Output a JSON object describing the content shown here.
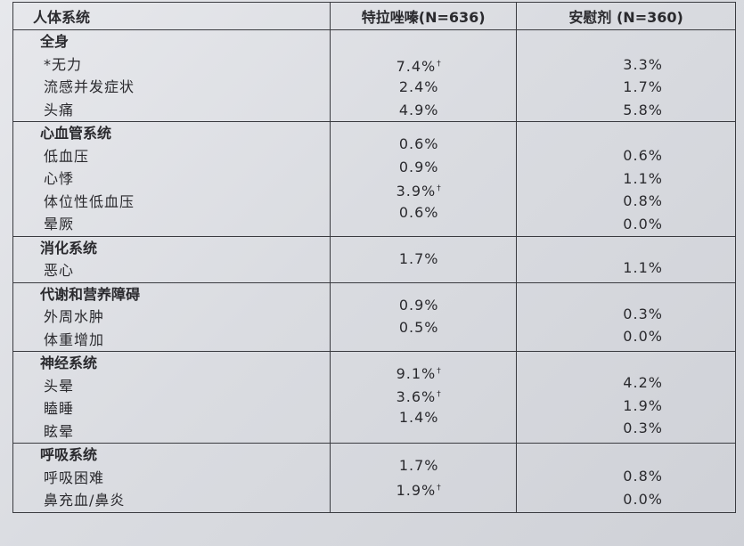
{
  "header": {
    "col_system": "人体系统",
    "col_drug": "特拉唑嗪(N=636)",
    "col_placebo": "安慰剂 (N=360)"
  },
  "sections": [
    {
      "title": "全身",
      "items": [
        "*无力",
        "流感并发症状",
        "头痛"
      ],
      "drug": [
        "7.4%",
        "2.4%",
        "4.9%"
      ],
      "drug_marks": [
        "†",
        "",
        ""
      ],
      "placebo": [
        "3.3%",
        "1.7%",
        "5.8%"
      ]
    },
    {
      "title": "心血管系统",
      "items": [
        "低血压",
        "心悸",
        "体位性低血压",
        "晕厥"
      ],
      "drug": [
        "0.6%",
        "0.9%",
        "3.9%",
        "0.6%"
      ],
      "drug_marks": [
        "",
        "",
        "†",
        ""
      ],
      "placebo": [
        "0.6%",
        "1.1%",
        "0.8%",
        "0.0%"
      ]
    },
    {
      "title": "消化系统",
      "items": [
        "恶心"
      ],
      "drug": [
        "1.7%"
      ],
      "drug_marks": [
        ""
      ],
      "placebo": [
        "1.1%"
      ]
    },
    {
      "title": "代谢和营养障碍",
      "items": [
        "外周水肿",
        "体重增加"
      ],
      "drug": [
        "0.9%",
        "0.5%"
      ],
      "drug_marks": [
        "",
        ""
      ],
      "placebo": [
        "0.3%",
        "0.0%"
      ]
    },
    {
      "title": "神经系统",
      "items": [
        "头晕",
        "瞌睡",
        "眩晕"
      ],
      "drug": [
        "9.1%",
        "3.6%",
        "1.4%"
      ],
      "drug_marks": [
        "†",
        "†",
        ""
      ],
      "placebo": [
        "4.2%",
        "1.9%",
        "0.3%"
      ]
    },
    {
      "title": "呼吸系统",
      "items": [
        "呼吸困难",
        "鼻充血/鼻炎"
      ],
      "drug": [
        "1.7%",
        "1.9%"
      ],
      "drug_marks": [
        "",
        "†"
      ],
      "placebo": [
        "0.8%",
        "0.0%"
      ]
    }
  ]
}
